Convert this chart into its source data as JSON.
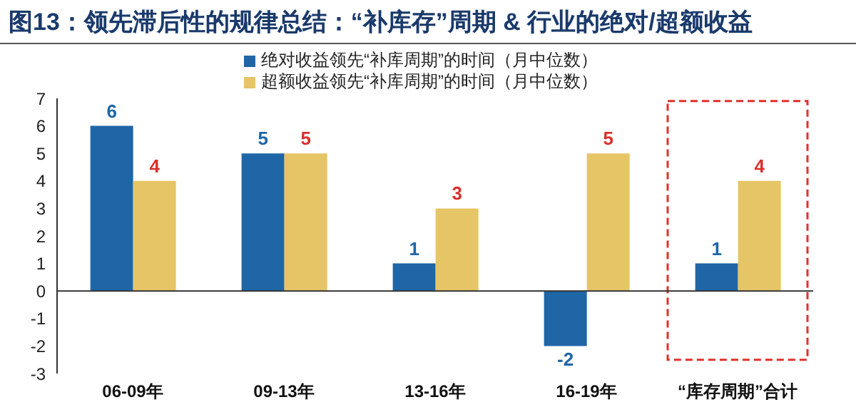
{
  "chart_data": {
    "type": "bar",
    "title": "图13：领先滞后性的规律总结：“补库存”周期 & 行业的绝对/超额收益",
    "categories": [
      "06-09年",
      "09-13年",
      "13-16年",
      "16-19年",
      "“库存周期”合计"
    ],
    "series": [
      {
        "name": "绝对收益领先“补库周期”的时间（月中位数）",
        "color": "#1f66a6",
        "values": [
          6,
          5,
          1,
          -2,
          1
        ]
      },
      {
        "name": "超额收益领先“补库周期”的时间（月中位数）",
        "color": "#e6c566",
        "values": [
          4,
          5,
          3,
          5,
          4
        ]
      }
    ],
    "ref_lines": [
      {
        "axis": "y",
        "value": 0,
        "color": "#333333"
      }
    ],
    "ylim": [
      -3,
      7
    ],
    "yticks": [
      -3,
      -2,
      -1,
      0,
      1,
      2,
      3,
      4,
      5,
      6,
      7
    ],
    "grid": false,
    "legend": "top",
    "data_labels": true
  }
}
